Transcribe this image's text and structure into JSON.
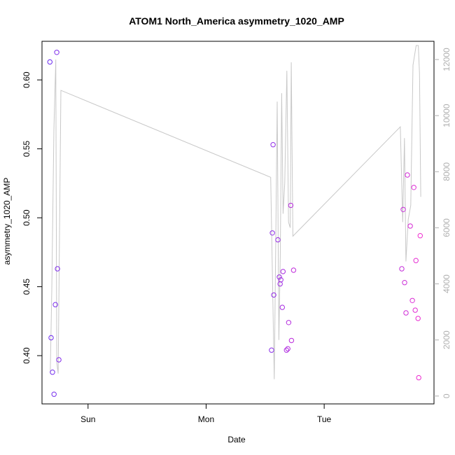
{
  "chart_data": {
    "type": "scatter",
    "title": "ATOM1 North_America asymmetry_1020_AMP",
    "xlabel": "Date",
    "ylabel": "asymmetry_1020_AMP",
    "x_ticks": [
      {
        "label": "Sun",
        "value": 1.0
      },
      {
        "label": "Mon",
        "value": 2.0
      },
      {
        "label": "Tue",
        "value": 3.0
      }
    ],
    "xlim": [
      0.61,
      3.93
    ],
    "ylim": [
      0.365,
      0.628
    ],
    "y_ticks": [
      0.4,
      0.45,
      0.5,
      0.55,
      0.6
    ],
    "y_tick_labels": [
      "0.40",
      "0.45",
      "0.50",
      "0.55",
      "0.60"
    ],
    "y2lim": [
      -280,
      12650
    ],
    "y2_ticks": [
      0,
      2000,
      4000,
      6000,
      8000,
      10000,
      12000
    ],
    "y2_tick_labels": [
      "0",
      "2000",
      "4000",
      "6000",
      "8000",
      "10000",
      "12000"
    ],
    "point_color_start": "#6a2bf0",
    "point_color_end": "#f02bcf",
    "line_color": "#c8c8c8",
    "points": [
      {
        "x": 0.677,
        "y": 0.613
      },
      {
        "x": 0.687,
        "y": 0.413
      },
      {
        "x": 0.699,
        "y": 0.388
      },
      {
        "x": 0.712,
        "y": 0.372
      },
      {
        "x": 0.723,
        "y": 0.437
      },
      {
        "x": 0.735,
        "y": 0.62
      },
      {
        "x": 0.741,
        "y": 0.463
      },
      {
        "x": 0.753,
        "y": 0.397
      },
      {
        "x": 2.554,
        "y": 0.404
      },
      {
        "x": 2.561,
        "y": 0.489
      },
      {
        "x": 2.567,
        "y": 0.553
      },
      {
        "x": 2.573,
        "y": 0.444
      },
      {
        "x": 2.608,
        "y": 0.484
      },
      {
        "x": 2.62,
        "y": 0.457
      },
      {
        "x": 2.627,
        "y": 0.452
      },
      {
        "x": 2.633,
        "y": 0.455
      },
      {
        "x": 2.645,
        "y": 0.435
      },
      {
        "x": 2.651,
        "y": 0.461
      },
      {
        "x": 2.681,
        "y": 0.404
      },
      {
        "x": 2.692,
        "y": 0.405
      },
      {
        "x": 2.699,
        "y": 0.424
      },
      {
        "x": 2.717,
        "y": 0.509
      },
      {
        "x": 2.723,
        "y": 0.411
      },
      {
        "x": 2.741,
        "y": 0.462
      },
      {
        "x": 3.657,
        "y": 0.463
      },
      {
        "x": 3.669,
        "y": 0.506
      },
      {
        "x": 3.681,
        "y": 0.453
      },
      {
        "x": 3.693,
        "y": 0.431
      },
      {
        "x": 3.705,
        "y": 0.531
      },
      {
        "x": 3.729,
        "y": 0.494
      },
      {
        "x": 3.747,
        "y": 0.44
      },
      {
        "x": 3.759,
        "y": 0.522
      },
      {
        "x": 3.771,
        "y": 0.433
      },
      {
        "x": 3.777,
        "y": 0.469
      },
      {
        "x": 3.795,
        "y": 0.427
      },
      {
        "x": 3.801,
        "y": 0.384
      },
      {
        "x": 3.813,
        "y": 0.487
      }
    ],
    "count_line": [
      {
        "x": 0.68,
        "y": 800
      },
      {
        "x": 0.693,
        "y": 3800
      },
      {
        "x": 0.711,
        "y": 9500
      },
      {
        "x": 0.727,
        "y": 12000
      },
      {
        "x": 0.735,
        "y": 1200
      },
      {
        "x": 0.747,
        "y": 800
      },
      {
        "x": 0.77,
        "y": 10900
      },
      {
        "x": 2.547,
        "y": 7800
      },
      {
        "x": 2.577,
        "y": 600
      },
      {
        "x": 2.59,
        "y": 5600
      },
      {
        "x": 2.602,
        "y": 10500
      },
      {
        "x": 2.616,
        "y": 2000
      },
      {
        "x": 2.628,
        "y": 5000
      },
      {
        "x": 2.64,
        "y": 10800
      },
      {
        "x": 2.652,
        "y": 6500
      },
      {
        "x": 2.666,
        "y": 7600
      },
      {
        "x": 2.684,
        "y": 11600
      },
      {
        "x": 2.698,
        "y": 6200
      },
      {
        "x": 2.712,
        "y": 6000
      },
      {
        "x": 2.721,
        "y": 11900
      },
      {
        "x": 2.735,
        "y": 5700
      },
      {
        "x": 3.645,
        "y": 9600
      },
      {
        "x": 3.665,
        "y": 6200
      },
      {
        "x": 3.68,
        "y": 9200
      },
      {
        "x": 3.692,
        "y": 4800
      },
      {
        "x": 3.712,
        "y": 6300
      },
      {
        "x": 3.733,
        "y": 6800
      },
      {
        "x": 3.752,
        "y": 11800
      },
      {
        "x": 3.779,
        "y": 12500
      },
      {
        "x": 3.797,
        "y": 12500
      },
      {
        "x": 3.807,
        "y": 11500
      },
      {
        "x": 3.818,
        "y": 7100
      }
    ],
    "grid": false,
    "legend": "none"
  }
}
